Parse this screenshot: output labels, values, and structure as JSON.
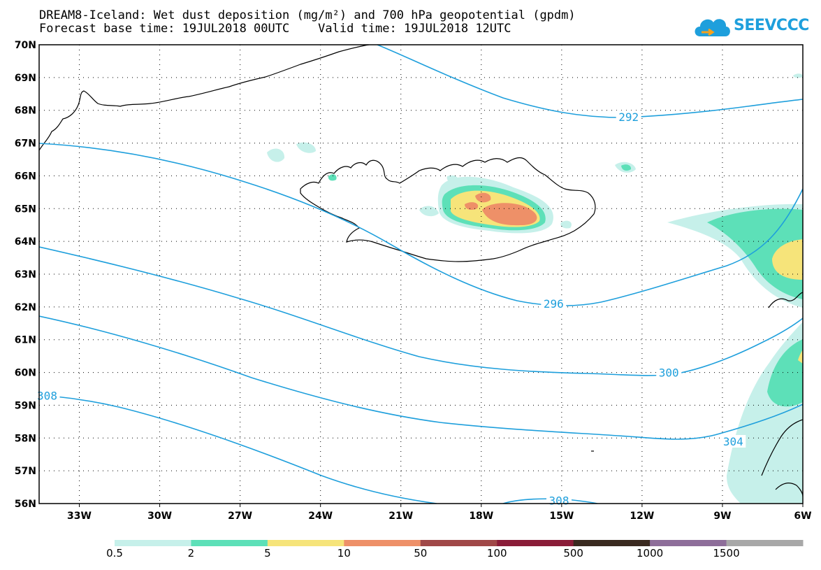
{
  "title": {
    "line1": "DREAM8-Iceland: Wet dust deposition (mg/m²) and 700 hPa geopotential (gpdm)",
    "line2": "Forecast base time: 19JUL2018 00UTC    Valid time: 19JUL2018 12UTC"
  },
  "logo": {
    "text": "SEEVCCC",
    "icon": "cloud-icon"
  },
  "axes": {
    "lat_labels": [
      "70N",
      "69N",
      "68N",
      "67N",
      "66N",
      "65N",
      "64N",
      "63N",
      "62N",
      "61N",
      "60N",
      "59N",
      "58N",
      "57N",
      "56N"
    ],
    "lon_labels": [
      "33W",
      "30W",
      "27W",
      "24W",
      "21W",
      "18W",
      "15W",
      "12W",
      "9W",
      "6W"
    ],
    "lat_range": [
      56,
      70
    ],
    "lon_range": [
      -34.5,
      -6
    ],
    "grid": "dotted"
  },
  "contours": {
    "color": "#1e9fdc",
    "labels": [
      {
        "text": "292",
        "lat": 67.8,
        "lon": -12.5
      },
      {
        "text": "296",
        "lat": 62.1,
        "lon": -15.3
      },
      {
        "text": "300",
        "lat": 60.0,
        "lon": -11.0
      },
      {
        "text": "304",
        "lat": 57.9,
        "lon": -8.6
      },
      {
        "text": "308",
        "lat": 59.3,
        "lon": -34.2
      },
      {
        "text": "308",
        "lat": 56.1,
        "lon": -15.1
      }
    ]
  },
  "legend": {
    "labels": [
      "0.5",
      "2",
      "5",
      "10",
      "50",
      "100",
      "500",
      "1000",
      "1500"
    ],
    "colors": [
      "#c6f0ea",
      "#5de0b8",
      "#f6e47a",
      "#ee9068",
      "#a04848",
      "#8a1c38",
      "#3a2a20",
      "#8e6e9a",
      "#a8a8a8"
    ]
  }
}
